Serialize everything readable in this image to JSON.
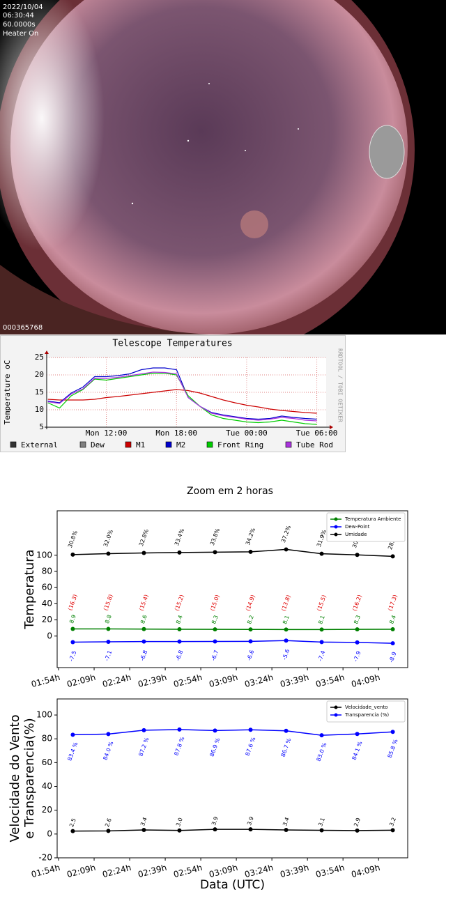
{
  "camera": {
    "date": "2022/10/04",
    "time": "06:30:44",
    "exposure": "60.0000s",
    "status": "Heater On",
    "frame": "000365768"
  },
  "figure_title": "Zoom em 2 horas",
  "chart_data": [
    {
      "type": "line",
      "title": "Telescope Temperatures",
      "ylabel": "Temperature oC",
      "side_note": "RRDTOOL / TOBI OETIKER",
      "x": [
        7,
        8,
        9,
        10,
        11,
        12,
        13,
        14,
        15,
        16,
        17,
        18,
        19,
        20,
        21,
        22,
        23,
        24,
        25,
        26,
        27,
        28,
        29,
        30
      ],
      "xlim": [
        6.9,
        30.8
      ],
      "xticks": [
        {
          "value": 12,
          "label": "Mon 12:00"
        },
        {
          "value": 18,
          "label": "Mon 18:00"
        },
        {
          "value": 24,
          "label": "Tue 00:00"
        },
        {
          "value": 30,
          "label": "Tue 06:00"
        }
      ],
      "ylim": [
        5,
        25
      ],
      "yticks": [
        5,
        10,
        15,
        20,
        25
      ],
      "grid": true,
      "series": [
        {
          "name": "External",
          "color": "#333333",
          "values": [
            null,
            null,
            null,
            null,
            null,
            null,
            null,
            null,
            null,
            null,
            null,
            null,
            null,
            null,
            null,
            null,
            null,
            null,
            null,
            null,
            null,
            null,
            null,
            null
          ]
        },
        {
          "name": "Dew",
          "color": "#808080",
          "values": [
            null,
            null,
            null,
            null,
            null,
            null,
            null,
            null,
            null,
            null,
            null,
            null,
            null,
            null,
            null,
            null,
            null,
            null,
            null,
            null,
            null,
            null,
            null,
            null
          ]
        },
        {
          "name": "M1",
          "color": "#cc0000",
          "values": [
            13,
            12.8,
            12.8,
            12.8,
            13,
            13.5,
            13.8,
            14.2,
            14.6,
            15,
            15.4,
            15.8,
            15.5,
            14.8,
            13.8,
            12.8,
            12,
            11.3,
            10.8,
            10.2,
            9.8,
            9.5,
            9.2,
            9
          ]
        },
        {
          "name": "M2",
          "color": "#0000cc",
          "values": [
            12.5,
            12,
            14.8,
            16.5,
            19.5,
            19.5,
            19.8,
            20.3,
            21.5,
            22,
            22,
            21.5,
            13.5,
            11,
            9.2,
            8.5,
            8,
            7.5,
            7.3,
            7.5,
            8.2,
            7.8,
            7.5,
            7.3
          ]
        },
        {
          "name": "Front Ring",
          "color": "#00cc00",
          "values": [
            12,
            10.5,
            14,
            15.8,
            18.8,
            18.5,
            19,
            19.5,
            20,
            20.5,
            20.5,
            20,
            14,
            11,
            8.5,
            7.5,
            7,
            6.5,
            6.3,
            6.5,
            7,
            6.5,
            6,
            5.8
          ]
        },
        {
          "name": "Tube Rod",
          "color": "#aa33dd",
          "values": [
            12.3,
            11.8,
            14.5,
            16,
            19,
            19,
            19.3,
            19.8,
            20.3,
            20.8,
            20.7,
            20.3,
            13.5,
            11,
            9,
            8.3,
            7.8,
            7.3,
            7,
            7.3,
            7.8,
            7.5,
            7,
            6.8
          ]
        }
      ]
    },
    {
      "type": "line",
      "ylabel": [
        "Temperatura"
      ],
      "x": [
        120,
        135,
        150,
        165,
        180,
        195,
        210,
        225,
        240,
        255
      ],
      "xlim": [
        113.4,
        261.3
      ],
      "xticks": [
        {
          "value": 114,
          "label": "01:54h"
        },
        {
          "value": 129,
          "label": "02:09h"
        },
        {
          "value": 144,
          "label": "02:24h"
        },
        {
          "value": 159,
          "label": "02:39h"
        },
        {
          "value": 174,
          "label": "02:54h"
        },
        {
          "value": 189,
          "label": "03:09h"
        },
        {
          "value": 204,
          "label": "03:24h"
        },
        {
          "value": 219,
          "label": "03:39h"
        },
        {
          "value": 234,
          "label": "03:54h"
        },
        {
          "value": 249,
          "label": "04:09h"
        }
      ],
      "ylim": [
        -39,
        155
      ],
      "yticks": [
        0,
        20,
        40,
        60,
        80,
        100
      ],
      "legend": "upper right",
      "series": [
        {
          "name": "Temperatura Ambiente",
          "color": "#008000",
          "values": [
            8.9,
            8.8,
            8.6,
            8.4,
            8.3,
            8.2,
            8.1,
            8.1,
            8.3,
            8.4
          ]
        },
        {
          "name": "Dew-Point",
          "color": "#0000ff",
          "values": [
            -7.5,
            -7.1,
            -6.8,
            -6.8,
            -6.7,
            -6.6,
            -5.6,
            -7.4,
            -7.9,
            -8.9
          ]
        },
        {
          "name": "Umidade",
          "color": "#000000",
          "values": [
            100.8,
            102,
            102.8,
            103.4,
            103.8,
            104.2,
            107.2,
            101.9,
            100.5,
            98.6
          ]
        }
      ],
      "annotations": [
        [
          "30.8%",
          "32.0%",
          "32.8%",
          "33.4%",
          "33.8%",
          "34.2%",
          "37.2%",
          "31.9%",
          "30.5%",
          "28.6%"
        ],
        [
          "(16.3)",
          "(15.8)",
          "(15.4)",
          "(15.2)",
          "(15.0)",
          "(14.9)",
          "(13.8)",
          "(15.5)",
          "(16.2)",
          "(17.3)"
        ]
      ]
    },
    {
      "type": "line",
      "ylabel": [
        "Velocidade do Vento",
        "e Transparencia(%)"
      ],
      "xlabel": "Data (UTC)",
      "x": [
        120,
        135,
        150,
        165,
        180,
        195,
        210,
        225,
        240,
        255
      ],
      "xlim": [
        113.4,
        261.3
      ],
      "xticks": [
        {
          "value": 114,
          "label": "01:54h"
        },
        {
          "value": 129,
          "label": "02:09h"
        },
        {
          "value": 144,
          "label": "02:24h"
        },
        {
          "value": 159,
          "label": "02:39h"
        },
        {
          "value": 174,
          "label": "02:54h"
        },
        {
          "value": 189,
          "label": "03:09h"
        },
        {
          "value": 204,
          "label": "03:24h"
        },
        {
          "value": 219,
          "label": "03:39h"
        },
        {
          "value": 234,
          "label": "03:54h"
        },
        {
          "value": 249,
          "label": "04:09h"
        }
      ],
      "ylim": [
        -20,
        113.5
      ],
      "yticks": [
        -20,
        0,
        20,
        40,
        60,
        80,
        100
      ],
      "legend": "upper right",
      "series": [
        {
          "name": "Velocidade_vento",
          "color": "#000000",
          "values": [
            2.5,
            2.6,
            3.4,
            3.0,
            3.9,
            3.9,
            3.4,
            3.1,
            2.9,
            3.2
          ],
          "value_labels": [
            "2.5",
            "2.6",
            "3.4",
            "3.0",
            "3.9",
            "3.9",
            "3.4",
            "3.1",
            "2.9",
            "3.2"
          ]
        },
        {
          "name": "Transparencia (%)",
          "color": "#0000ff",
          "values": [
            83.4,
            84.0,
            87.2,
            87.8,
            86.9,
            87.6,
            86.7,
            83.0,
            84.1,
            85.8
          ],
          "value_labels": [
            "83.4 %",
            "84.0 %",
            "87.2 %",
            "87.8 %",
            "86.9 %",
            "87.6 %",
            "86.7 %",
            "83.0 %",
            "84.1 %",
            "85.8 %"
          ]
        }
      ]
    }
  ]
}
